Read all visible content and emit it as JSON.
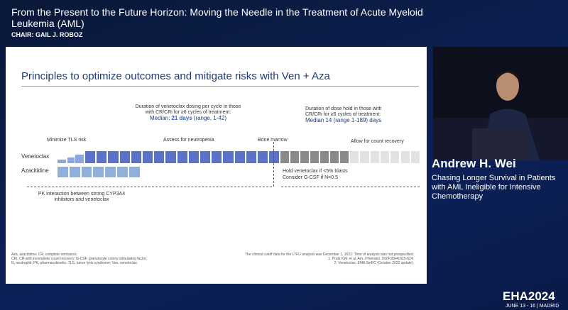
{
  "header": {
    "title": "From the Present to the Future Horizon: Moving the Needle in the Treatment of Acute Myeloid Leukemia (AML)",
    "chair": "CHAIR: GAIL J. ROBOZ"
  },
  "slide": {
    "title": "Principles to optimize outcomes and mitigate risks with Ven + Aza",
    "dosing_note": {
      "text": "Duration of venetoclax dosing per cycle in those with CR/CRi for ≥6 cycles of treatment:",
      "median_label": "Median:",
      "median_value": "21 days",
      "range": "(range, 1-42)"
    },
    "hold_note": {
      "text": "Duration of dose hold in those with CR/CRi for ≥6 cycles of treatment:",
      "median": "Median 14 (range 1-189) days"
    },
    "phase_labels": [
      "Minimize TLS risk",
      "Assess for neutropenia",
      "Bone marrow",
      "Allow for count recovery"
    ],
    "rows": [
      "Venetoclax",
      "Azacitidine"
    ],
    "hold_advice": [
      "Hold venetoclax if <5% blasts",
      "Consider G-CSF if N<0.5"
    ],
    "pk_note": "PK interaction between strong CYP3A4 inhibitors and venetoclax",
    "footnotes_left": [
      "Aza, azacitidine; CR, complete remission;",
      "CRi, CR with incomplete count recovery; G-CSF, granulocyte colony stimulating factor;",
      "N, neutrophil; PK, pharmacokinetic; TLS, tumor lysis syndrome; Ven, venetoclax."
    ],
    "footnotes_right": [
      "The clinical cutoff data for the LTFU analysis was December 1, 2021. Time of analysis was not prespecified.",
      "1. Pratz KW, et al. Am J Hematol. 2024;99(4):615-624.",
      "2. Venetoclax. EMA SmPC (October 2022 update)."
    ]
  },
  "speaker": {
    "name": "Andrew H. Wei",
    "talk": "Chasing Longer Survival in Patients with AML Ineligible for Intensive Chemotherapy"
  },
  "brand": {
    "logo": "EHA2024",
    "dates": "JUNE 13 - 16 | MADRID"
  }
}
